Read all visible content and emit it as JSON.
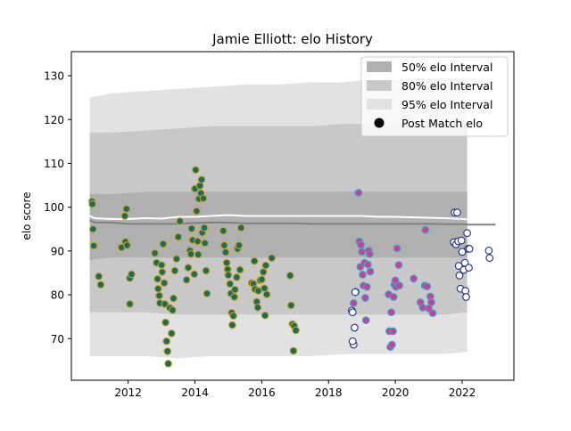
{
  "chart_data": {
    "type": "scatter",
    "title": "Jamie Elliott: elo History",
    "xlabel": "",
    "ylabel": "elo score",
    "xlim": [
      2010.3,
      2023.55
    ],
    "ylim": [
      60.5,
      135.5
    ],
    "x_ticks": [
      2012,
      2014,
      2016,
      2018,
      2020,
      2022
    ],
    "y_ticks": [
      70,
      80,
      90,
      100,
      110,
      120,
      130
    ],
    "grid": false,
    "legend_position": "top-right",
    "legend": [
      {
        "label": "50% elo Interval",
        "kind": "patch",
        "color": "#b0b0b0"
      },
      {
        "label": "80% elo Interval",
        "kind": "patch",
        "color": "#c8c8c8"
      },
      {
        "label": "95% elo Interval",
        "kind": "patch",
        "color": "#e2e2e2"
      },
      {
        "label": "Post Match elo",
        "kind": "marker",
        "color": "#000000"
      }
    ],
    "bands": {
      "x": [
        2010.85,
        2011.5,
        2012.5,
        2013.5,
        2014.5,
        2015.5,
        2016.5,
        2017.5,
        2018.5,
        2019.0,
        2019.5,
        2020.0,
        2020.5,
        2021.0,
        2021.5,
        2022.15
      ],
      "p95_hi": [
        125,
        126,
        126.5,
        127,
        127.5,
        128,
        128,
        128.5,
        128.5,
        129,
        129,
        129,
        129.5,
        129.5,
        129.5,
        129.5
      ],
      "p95_lo": [
        66,
        66,
        66,
        65.5,
        66,
        66,
        66,
        66,
        66.5,
        66.5,
        66.5,
        66.5,
        66.5,
        66.5,
        66.5,
        67
      ],
      "p80_hi": [
        117,
        117,
        117.5,
        118,
        118.5,
        118.5,
        118.5,
        118.5,
        119,
        119,
        119,
        119,
        119,
        119,
        119,
        119
      ],
      "p80_lo": [
        76,
        76,
        76,
        75.5,
        75.5,
        75.5,
        75.5,
        75.5,
        75.5,
        75.5,
        75.5,
        75.5,
        75.5,
        75.5,
        75.5,
        76
      ],
      "p50_hi": [
        103,
        103,
        103.5,
        103.5,
        103.5,
        103.5,
        103.5,
        103.5,
        103.5,
        103.5,
        103.5,
        103.5,
        103.5,
        103.5,
        103.5,
        103.5
      ],
      "p50_lo": [
        88,
        88.5,
        88.5,
        88.5,
        88.5,
        88.5,
        88.5,
        88.5,
        88.5,
        88.5,
        88.5,
        88.5,
        88.5,
        88.5,
        88.5,
        88.5
      ]
    },
    "median_line": {
      "x": [
        2010.85,
        2011.0,
        2011.5,
        2012.0,
        2012.5,
        2013.0,
        2013.5,
        2014.0,
        2014.5,
        2015.0,
        2015.5,
        2016.0,
        2016.5,
        2017.0,
        2017.5,
        2018.0,
        2018.5,
        2019.0,
        2019.5,
        2020.0,
        2020.5,
        2021.0,
        2021.5,
        2022.0,
        2022.2,
        2023.0
      ],
      "y": [
        97,
        96.5,
        96.5,
        96.2,
        96.2,
        96.2,
        96.2,
        96.4,
        96.5,
        96.5,
        96.3,
        96.3,
        96.3,
        96.3,
        96.2,
        96.2,
        96.2,
        96.2,
        96.2,
        96.2,
        96.2,
        96.2,
        96.1,
        96.1,
        96.0,
        96.0
      ]
    },
    "mean_line": {
      "x": [
        2010.85,
        2011.0,
        2011.5,
        2012.0,
        2012.5,
        2013.0,
        2013.5,
        2014.0,
        2014.5,
        2015.0,
        2015.5,
        2016.0,
        2016.5,
        2017.0,
        2017.5,
        2018.0,
        2018.5,
        2019.0,
        2019.5,
        2020.0,
        2020.5,
        2021.0,
        2021.5,
        2022.0,
        2022.15
      ],
      "y": [
        98,
        97.5,
        97.3,
        97.3,
        97.5,
        97.4,
        97.8,
        97.8,
        98,
        98.2,
        98,
        98,
        98,
        98,
        98,
        98,
        98,
        98,
        97.8,
        97.8,
        97.7,
        97.6,
        97.5,
        97.3,
        97.2
      ]
    },
    "series": [
      {
        "face_color": "#1e6b57",
        "edge_color": "#c9a227",
        "points": [
          [
            2010.92,
            101.3
          ],
          [
            2010.93,
            100.7
          ],
          [
            2010.95,
            95
          ],
          [
            2010.97,
            91.2
          ],
          [
            2011.12,
            84.2
          ],
          [
            2011.18,
            82.3
          ],
          [
            2011.8,
            90.8
          ],
          [
            2011.9,
            98
          ],
          [
            2011.92,
            92.1
          ],
          [
            2011.95,
            99.6
          ],
          [
            2011.97,
            91.3
          ],
          [
            2012.05,
            83.8
          ],
          [
            2012.1,
            84.7
          ],
          [
            2012.05,
            77.9
          ],
          [
            2012.8,
            89.5
          ],
          [
            2012.85,
            87.3
          ],
          [
            2012.88,
            83.6
          ],
          [
            2012.9,
            81.4
          ],
          [
            2012.93,
            79.8
          ],
          [
            2012.95,
            78.1
          ],
          [
            2013.0,
            86.8
          ],
          [
            2013.02,
            85.2
          ],
          [
            2013.05,
            91.6
          ],
          [
            2013.08,
            82.7
          ],
          [
            2013.1,
            77.9
          ],
          [
            2013.12,
            73.7
          ],
          [
            2013.15,
            69.4
          ],
          [
            2013.18,
            67.1
          ],
          [
            2013.2,
            64.3
          ],
          [
            2013.25,
            77
          ],
          [
            2013.3,
            71.2
          ],
          [
            2013.33,
            76.5
          ],
          [
            2013.36,
            79.2
          ],
          [
            2013.4,
            85.5
          ],
          [
            2013.45,
            88.2
          ],
          [
            2013.5,
            93.2
          ],
          [
            2013.55,
            96.8
          ],
          [
            2013.75,
            83.4
          ],
          [
            2013.8,
            86.2
          ],
          [
            2013.85,
            90.1
          ],
          [
            2013.88,
            89.3
          ],
          [
            2013.9,
            95.1
          ],
          [
            2013.93,
            92.5
          ],
          [
            2013.98,
            84.7
          ],
          [
            2014.0,
            104.2
          ],
          [
            2014.02,
            108.5
          ],
          [
            2014.05,
            99.1
          ],
          [
            2014.08,
            92.2
          ],
          [
            2014.1,
            89.2
          ],
          [
            2014.12,
            101.9
          ],
          [
            2014.15,
            104.9
          ],
          [
            2014.18,
            103.2
          ],
          [
            2014.2,
            106.3
          ],
          [
            2014.22,
            94.2
          ],
          [
            2014.25,
            102
          ],
          [
            2014.28,
            95.3
          ],
          [
            2014.3,
            91.8
          ],
          [
            2014.33,
            85.5
          ],
          [
            2014.36,
            80.3
          ],
          [
            2014.85,
            94.6
          ],
          [
            2014.88,
            91.3
          ],
          [
            2014.92,
            89.7
          ],
          [
            2014.95,
            87.3
          ],
          [
            2014.98,
            85.8
          ],
          [
            2015.0,
            84.5
          ],
          [
            2015.05,
            82.5
          ],
          [
            2015.08,
            80.3
          ],
          [
            2015.1,
            75.9
          ],
          [
            2015.12,
            73.1
          ],
          [
            2015.15,
            75.2
          ],
          [
            2015.18,
            79.5
          ],
          [
            2015.2,
            81.2
          ],
          [
            2015.25,
            84
          ],
          [
            2015.28,
            90.5
          ],
          [
            2015.32,
            91.3
          ],
          [
            2015.35,
            85.7
          ],
          [
            2015.38,
            95.3
          ],
          [
            2015.7,
            82.7
          ],
          [
            2015.75,
            82.5
          ],
          [
            2015.78,
            87.7
          ],
          [
            2015.8,
            81.3
          ],
          [
            2015.85,
            78.4
          ],
          [
            2015.88,
            77.1
          ],
          [
            2015.9,
            80.9
          ],
          [
            2015.95,
            83.3
          ],
          [
            2016.0,
            83.5
          ],
          [
            2016.05,
            85.2
          ],
          [
            2016.08,
            81.5
          ],
          [
            2016.1,
            75.3
          ],
          [
            2016.12,
            86.7
          ],
          [
            2016.15,
            80.1
          ],
          [
            2016.3,
            88.4
          ],
          [
            2016.85,
            84.4
          ],
          [
            2016.88,
            77.6
          ],
          [
            2016.92,
            73.3
          ],
          [
            2016.95,
            67.2
          ],
          [
            2016.97,
            72.9
          ],
          [
            2017.02,
            71.9
          ]
        ]
      },
      {
        "face_color": "#c2449a",
        "edge_color": "#3fa7c9",
        "points": [
          [
            2018.75,
            78.1
          ],
          [
            2018.82,
            80.7
          ],
          [
            2018.9,
            103.3
          ],
          [
            2018.92,
            92.2
          ],
          [
            2018.95,
            86.4
          ],
          [
            2018.97,
            91.4
          ],
          [
            2019.0,
            89.8
          ],
          [
            2019.02,
            84.6
          ],
          [
            2019.05,
            82.1
          ],
          [
            2019.08,
            87.3
          ],
          [
            2019.1,
            79.3
          ],
          [
            2019.12,
            74.2
          ],
          [
            2019.15,
            81.8
          ],
          [
            2019.18,
            86.9
          ],
          [
            2019.2,
            90.1
          ],
          [
            2019.23,
            89.3
          ],
          [
            2019.25,
            85.3
          ],
          [
            2019.8,
            80.1
          ],
          [
            2019.82,
            71.7
          ],
          [
            2019.85,
            68.1
          ],
          [
            2019.88,
            76
          ],
          [
            2019.9,
            68.6
          ],
          [
            2019.93,
            71.7
          ],
          [
            2019.95,
            79.5
          ],
          [
            2019.97,
            82.3
          ],
          [
            2020.0,
            83.3
          ],
          [
            2020.02,
            81.8
          ],
          [
            2020.05,
            90.6
          ],
          [
            2020.1,
            86.8
          ],
          [
            2020.12,
            82.1
          ],
          [
            2020.55,
            83.7
          ],
          [
            2020.75,
            78.3
          ],
          [
            2020.82,
            77.1
          ],
          [
            2020.88,
            82.1
          ],
          [
            2020.9,
            94.8
          ],
          [
            2020.95,
            81.9
          ],
          [
            2021.0,
            76.9
          ],
          [
            2021.05,
            79.6
          ],
          [
            2021.08,
            78.3
          ],
          [
            2021.12,
            75.8
          ]
        ]
      },
      {
        "face_color": "#ffffff",
        "edge_color": "#1c2f8a",
        "points": [
          [
            2018.7,
            76.4
          ],
          [
            2018.72,
            76
          ],
          [
            2018.75,
            68.6
          ],
          [
            2018.72,
            69.4
          ],
          [
            2018.78,
            72.5
          ],
          [
            2018.8,
            80.6
          ],
          [
            2021.75,
            92
          ],
          [
            2021.78,
            98.8
          ],
          [
            2021.82,
            91.5
          ],
          [
            2021.85,
            98.8
          ],
          [
            2021.88,
            92.2
          ],
          [
            2021.9,
            86.6
          ],
          [
            2021.92,
            84.4
          ],
          [
            2021.95,
            81.4
          ],
          [
            2021.98,
            92.4
          ],
          [
            2022.0,
            89.8
          ],
          [
            2022.05,
            85.7
          ],
          [
            2022.08,
            87.3
          ],
          [
            2022.1,
            80.9
          ],
          [
            2022.12,
            79.5
          ],
          [
            2022.15,
            94.1
          ],
          [
            2022.18,
            90.5
          ],
          [
            2022.2,
            86.2
          ],
          [
            2022.22,
            90.5
          ],
          [
            2022.8,
            90.1
          ],
          [
            2022.82,
            88.4
          ]
        ]
      }
    ]
  }
}
